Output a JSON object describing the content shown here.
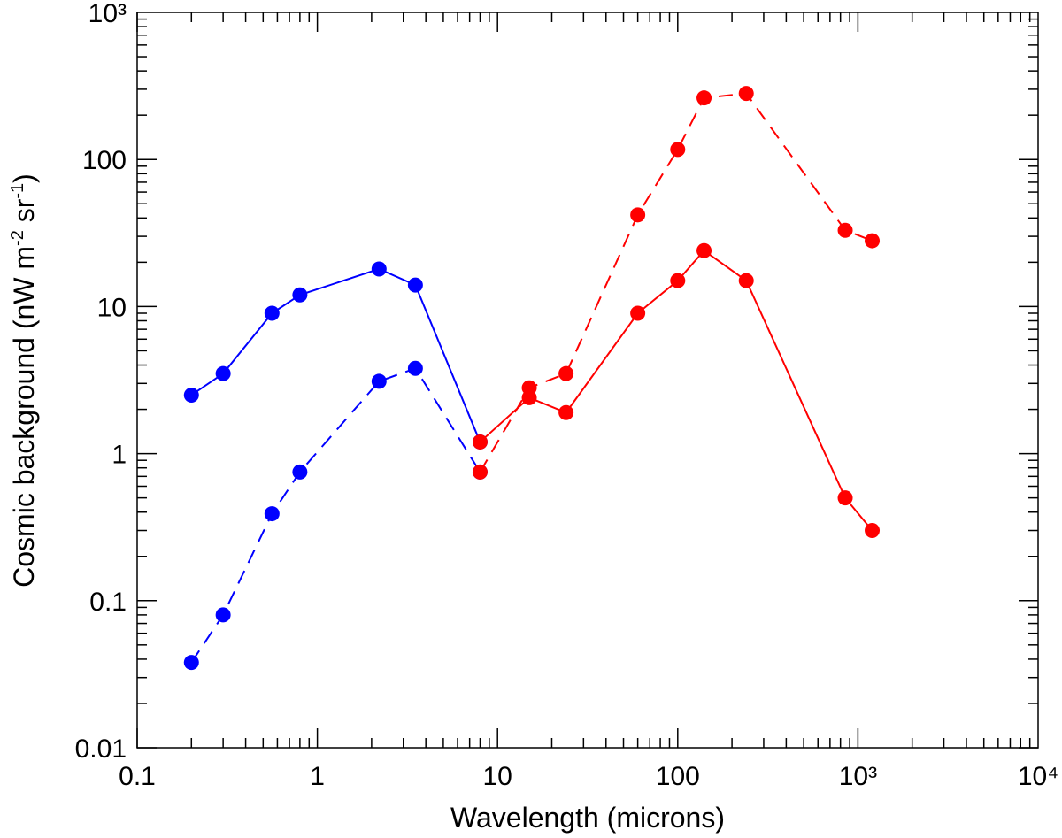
{
  "chart_data": {
    "type": "line",
    "xlabel": "Wavelength (microns)",
    "ylabel_parts": [
      "Cosmic background (nW m",
      "-2",
      " sr",
      "-1",
      ")"
    ],
    "x_scale": "log",
    "y_scale": "log",
    "xlim": [
      0.1,
      10000
    ],
    "ylim": [
      0.01,
      1000
    ],
    "x_ticks": [
      0.1,
      1,
      10,
      100,
      1000,
      10000
    ],
    "x_tick_labels": [
      "0.1",
      "1",
      "10",
      "100",
      "10³",
      "10⁴"
    ],
    "y_ticks": [
      0.01,
      0.1,
      1,
      10,
      100,
      1000
    ],
    "y_tick_labels": [
      "0.01",
      "0.1",
      "1",
      "10",
      "100",
      "10³"
    ],
    "grid": false,
    "series": [
      {
        "color": "#0000ff",
        "line_style": "solid",
        "marker": "circle",
        "x": [
          0.2,
          0.3,
          0.56,
          0.8,
          2.2,
          3.5,
          8
        ],
        "y": [
          2.5,
          3.5,
          9,
          12,
          18,
          14,
          1.2
        ]
      },
      {
        "color": "#0000ff",
        "line_style": "dashed",
        "marker": "circle",
        "x": [
          0.2,
          0.3,
          0.56,
          0.8,
          2.2,
          3.5,
          8
        ],
        "y": [
          0.038,
          0.08,
          0.39,
          0.75,
          3.1,
          3.8,
          0.75
        ]
      },
      {
        "color": "#ff0000",
        "line_style": "solid",
        "marker": "circle",
        "x": [
          8,
          15,
          24,
          60,
          100,
          140,
          240,
          850,
          1200
        ],
        "y": [
          1.2,
          2.4,
          1.9,
          9,
          15,
          24,
          15,
          0.5,
          0.3
        ]
      },
      {
        "color": "#ff0000",
        "line_style": "dashed",
        "marker": "circle",
        "x": [
          8,
          15,
          24,
          60,
          100,
          140,
          240,
          850,
          1200
        ],
        "y": [
          0.75,
          2.8,
          3.5,
          42,
          117,
          262,
          281,
          33,
          28
        ]
      }
    ]
  }
}
